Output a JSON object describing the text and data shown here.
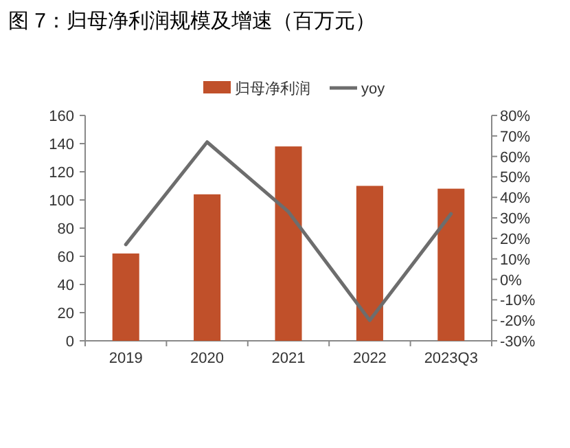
{
  "chart_data": {
    "type": "bar",
    "title": "图 7：归母净利润规模及增速（百万元）",
    "categories": [
      "2019",
      "2020",
      "2021",
      "2022",
      "2023Q3"
    ],
    "series": [
      {
        "name": "归母净利润",
        "color": "#c0502a",
        "values": [
          62,
          104,
          138,
          110,
          108
        ]
      },
      {
        "name": "yoy",
        "type": "line",
        "axis": "y2",
        "color": "#6d6d6d",
        "values": [
          17,
          67,
          33,
          -20,
          32
        ]
      }
    ],
    "ylim": [
      0,
      160
    ],
    "yticks": [
      0,
      20,
      40,
      60,
      80,
      100,
      120,
      140,
      160
    ],
    "y2lim": [
      -30,
      80
    ],
    "y2ticks": [
      {
        "value": -30,
        "label": "-30%"
      },
      {
        "value": -20,
        "label": "-20%"
      },
      {
        "value": -10,
        "label": "-10%"
      },
      {
        "value": 0,
        "label": "0%"
      },
      {
        "value": 10,
        "label": "10%"
      },
      {
        "value": 20,
        "label": "20%"
      },
      {
        "value": 30,
        "label": "30%"
      },
      {
        "value": 40,
        "label": "40%"
      },
      {
        "value": 50,
        "label": "50%"
      },
      {
        "value": 60,
        "label": "60%"
      },
      {
        "value": 70,
        "label": "70%"
      },
      {
        "value": 80,
        "label": "80%"
      }
    ],
    "legend": "top",
    "grid": false,
    "marker": "none",
    "line_style": "solid"
  }
}
